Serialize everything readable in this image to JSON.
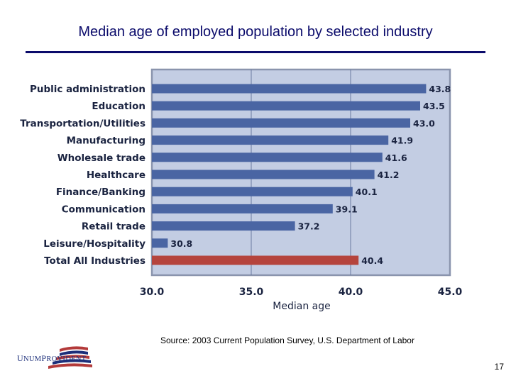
{
  "slide": {
    "title": "Median age of employed population by selected industry",
    "source": "Source:  2003 Current Population Survey, U.S. Department of Labor",
    "page_number": "17",
    "logo_text_1": "U",
    "logo_text_2": "NUM",
    "logo_text_3": "P",
    "logo_text_4": "ROVIDENT"
  },
  "colors": {
    "title": "#0b0b6b",
    "plot_background": "#c3cde3",
    "bar": "#4a65a3",
    "bar_total": "#b5443d",
    "grid": "#6b7aa0"
  },
  "chart_data": {
    "type": "bar",
    "orientation": "horizontal",
    "categories": [
      "Public administration",
      "Education",
      "Transportation/Utilities",
      "Manufacturing",
      "Wholesale trade",
      "Healthcare",
      "Finance/Banking",
      "Communication",
      "Retail trade",
      "Leisure/Hospitality",
      "Total All Industries"
    ],
    "values": [
      43.8,
      43.5,
      43.0,
      41.9,
      41.6,
      41.2,
      40.1,
      39.1,
      37.2,
      30.8,
      40.4
    ],
    "data_labels": [
      "43.8",
      "43.5",
      "43.0",
      "41.9",
      "41.6",
      "41.2",
      "40.1",
      "39.1",
      "37.2",
      "30.8",
      "40.4"
    ],
    "highlight": "Total All Industries",
    "xlabel": "Median age",
    "xlim": [
      30,
      45
    ],
    "xticks": [
      "30.0",
      "35.0",
      "40.0",
      "45.0"
    ],
    "grid": true
  }
}
